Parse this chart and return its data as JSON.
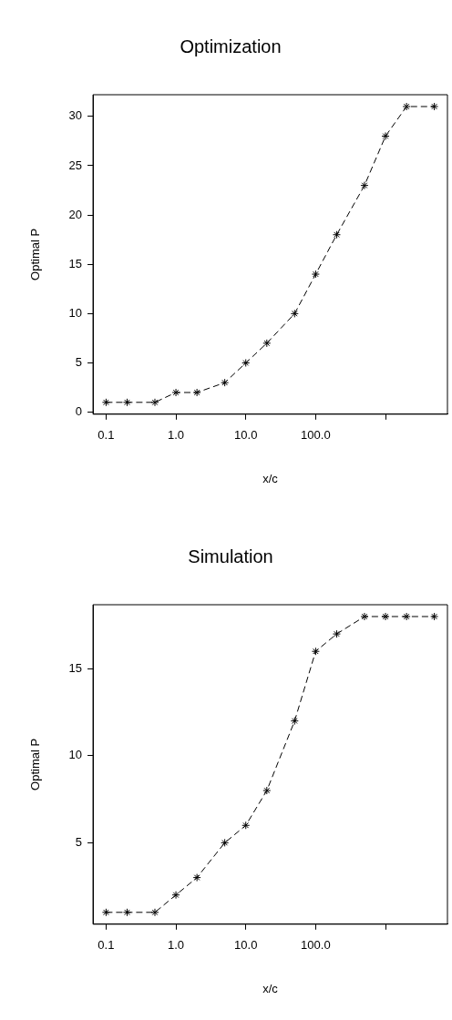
{
  "chart_data": [
    {
      "type": "line",
      "title": "Optimization",
      "xlabel": "x/c",
      "ylabel": "Optimal P",
      "x": [
        0.1,
        0.2,
        0.5,
        1,
        2,
        5,
        10,
        20,
        50,
        100,
        200,
        500,
        1000,
        2000,
        5000
      ],
      "series": [
        {
          "color": "#000000",
          "values": [
            1,
            1,
            1,
            2,
            2,
            3,
            5,
            7,
            10,
            14,
            18,
            23,
            28,
            31,
            31
          ]
        }
      ],
      "log": "x",
      "xlim": [
        0.065,
        7700
      ],
      "ylim": [
        -0.2,
        32.2
      ],
      "xticks": [
        0.1,
        {
          "value": 1,
          "label": "1.0"
        },
        {
          "value": 10,
          "label": "10.0"
        },
        {
          "value": 100,
          "label": "100.0"
        },
        {
          "value": 1000,
          "label": null
        }
      ],
      "yticks": [
        0,
        5,
        10,
        15,
        20,
        25,
        30
      ],
      "grid": false,
      "legend": false,
      "marker": "cross",
      "line_style": "dashed"
    },
    {
      "type": "line",
      "title": "Simulation",
      "xlabel": "x/c",
      "ylabel": "Optimal P",
      "x": [
        0.1,
        0.2,
        0.5,
        1,
        2,
        5,
        10,
        20,
        50,
        100,
        200,
        500,
        1000,
        2000,
        5000
      ],
      "series": [
        {
          "color": "#000000",
          "values": [
            1,
            1,
            1,
            2,
            3,
            5,
            6,
            8,
            12,
            16,
            17,
            18,
            18,
            18,
            18
          ]
        }
      ],
      "log": "x",
      "xlim": [
        0.065,
        7700
      ],
      "ylim": [
        0.32,
        18.68
      ],
      "xticks": [
        0.1,
        {
          "value": 1,
          "label": "1.0"
        },
        {
          "value": 10,
          "label": "10.0"
        },
        {
          "value": 100,
          "label": "100.0"
        },
        {
          "value": 1000,
          "label": null
        }
      ],
      "yticks": [
        5,
        10,
        15
      ],
      "grid": false,
      "legend": false,
      "marker": "cross",
      "line_style": "dashed"
    }
  ]
}
